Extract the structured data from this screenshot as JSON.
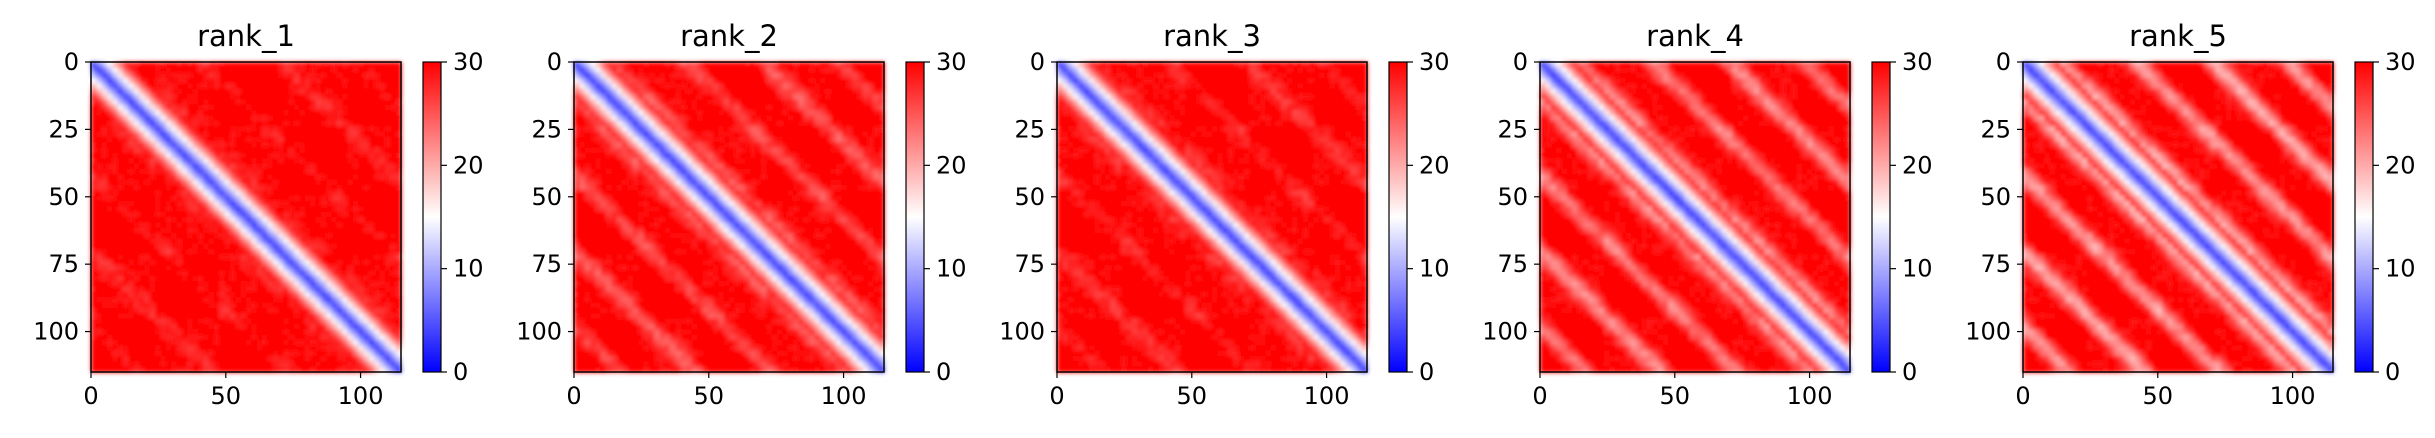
{
  "chart_data": [
    {
      "type": "heatmap",
      "title": "rank_1",
      "xlim": [
        0,
        115
      ],
      "ylim": [
        115,
        0
      ],
      "xticks": [
        "0",
        "50",
        "100"
      ],
      "yticks": [
        "0",
        "25",
        "50",
        "75",
        "100"
      ],
      "colorbar": {
        "min": 0,
        "max": 30,
        "ticks": [
          "0",
          "10",
          "20",
          "30"
        ],
        "colormap": "bwr"
      }
    },
    {
      "type": "heatmap",
      "title": "rank_2",
      "xlim": [
        0,
        115
      ],
      "ylim": [
        115,
        0
      ],
      "xticks": [
        "0",
        "50",
        "100"
      ],
      "yticks": [
        "0",
        "25",
        "50",
        "75",
        "100"
      ],
      "colorbar": {
        "min": 0,
        "max": 30,
        "ticks": [
          "0",
          "10",
          "20",
          "30"
        ],
        "colormap": "bwr"
      }
    },
    {
      "type": "heatmap",
      "title": "rank_3",
      "xlim": [
        0,
        115
      ],
      "ylim": [
        115,
        0
      ],
      "xticks": [
        "0",
        "50",
        "100"
      ],
      "yticks": [
        "0",
        "25",
        "50",
        "75",
        "100"
      ],
      "colorbar": {
        "min": 0,
        "max": 30,
        "ticks": [
          "0",
          "10",
          "20",
          "30"
        ],
        "colormap": "bwr"
      }
    },
    {
      "type": "heatmap",
      "title": "rank_4",
      "xlim": [
        0,
        115
      ],
      "ylim": [
        115,
        0
      ],
      "xticks": [
        "0",
        "50",
        "100"
      ],
      "yticks": [
        "0",
        "25",
        "50",
        "75",
        "100"
      ],
      "colorbar": {
        "min": 0,
        "max": 30,
        "ticks": [
          "0",
          "10",
          "20",
          "30"
        ],
        "colormap": "bwr"
      }
    },
    {
      "type": "heatmap",
      "title": "rank_5",
      "xlim": [
        0,
        115
      ],
      "ylim": [
        115,
        0
      ],
      "xticks": [
        "0",
        "50",
        "100"
      ],
      "yticks": [
        "0",
        "25",
        "50",
        "75",
        "100"
      ],
      "colorbar": {
        "min": 0,
        "max": 30,
        "ticks": [
          "0",
          "10",
          "20",
          "30"
        ],
        "colormap": "bwr"
      }
    }
  ],
  "colors": {
    "low": "#0000ff",
    "mid": "#ffffff",
    "high": "#ff0000"
  }
}
